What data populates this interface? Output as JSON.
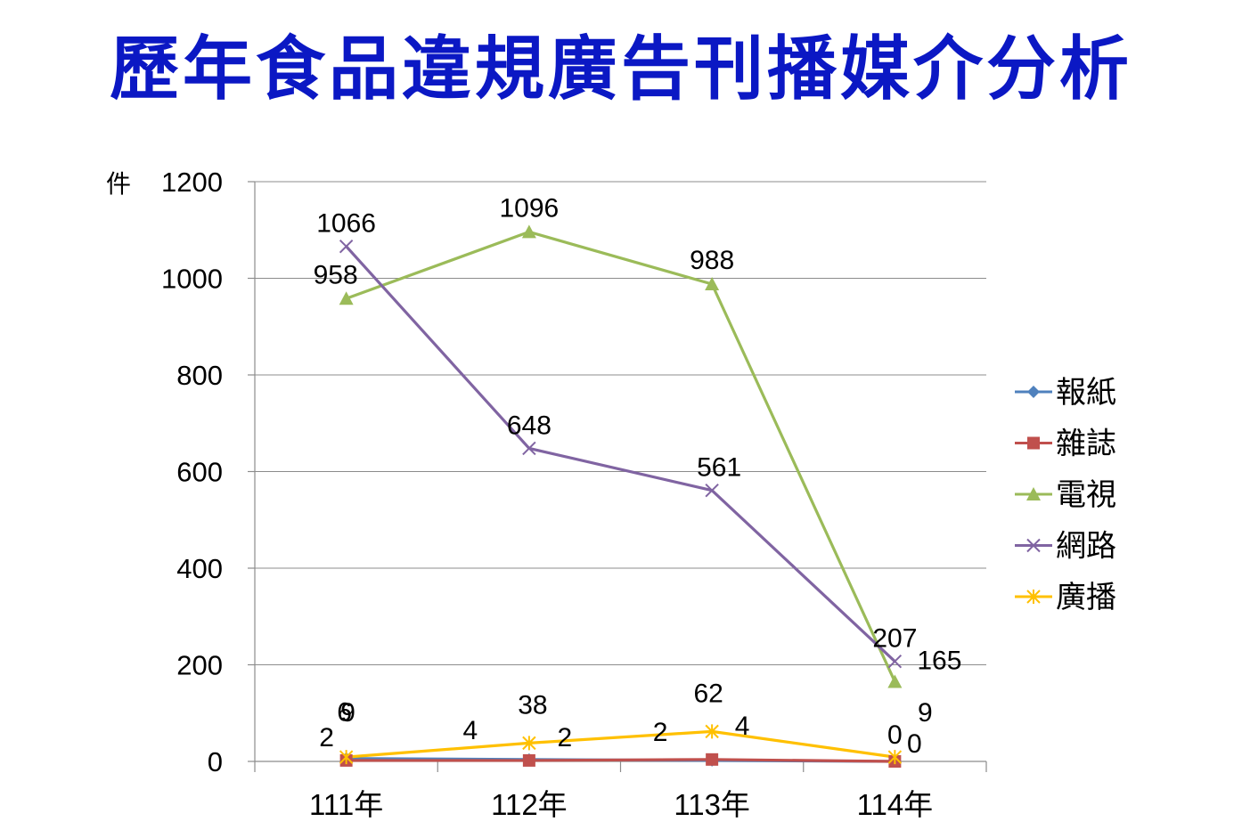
{
  "chart_data": {
    "type": "line",
    "title": "歷年食品違規廣告刊播媒介分析",
    "ylabel": "件",
    "xlabel": "",
    "categories": [
      "111年",
      "112年",
      "113年",
      "114年"
    ],
    "ylim": [
      0,
      1200
    ],
    "yticks": [
      0,
      200,
      400,
      600,
      800,
      1000,
      1200
    ],
    "grid": true,
    "legend_position": "right",
    "series": [
      {
        "name": "報紙",
        "values": [
          6,
          4,
          2,
          0
        ],
        "color": "#4f81bd",
        "marker": "diamond"
      },
      {
        "name": "雜誌",
        "values": [
          2,
          2,
          4,
          0
        ],
        "color": "#c0504d",
        "marker": "square"
      },
      {
        "name": "電視",
        "values": [
          958,
          1096,
          988,
          165
        ],
        "color": "#9bbb59",
        "marker": "triangle"
      },
      {
        "name": "網路",
        "values": [
          1066,
          648,
          561,
          207
        ],
        "color": "#8064a2",
        "marker": "x"
      },
      {
        "name": "廣播",
        "values": [
          9,
          38,
          62,
          9
        ],
        "color": "#ffc000",
        "marker": "star"
      }
    ]
  }
}
